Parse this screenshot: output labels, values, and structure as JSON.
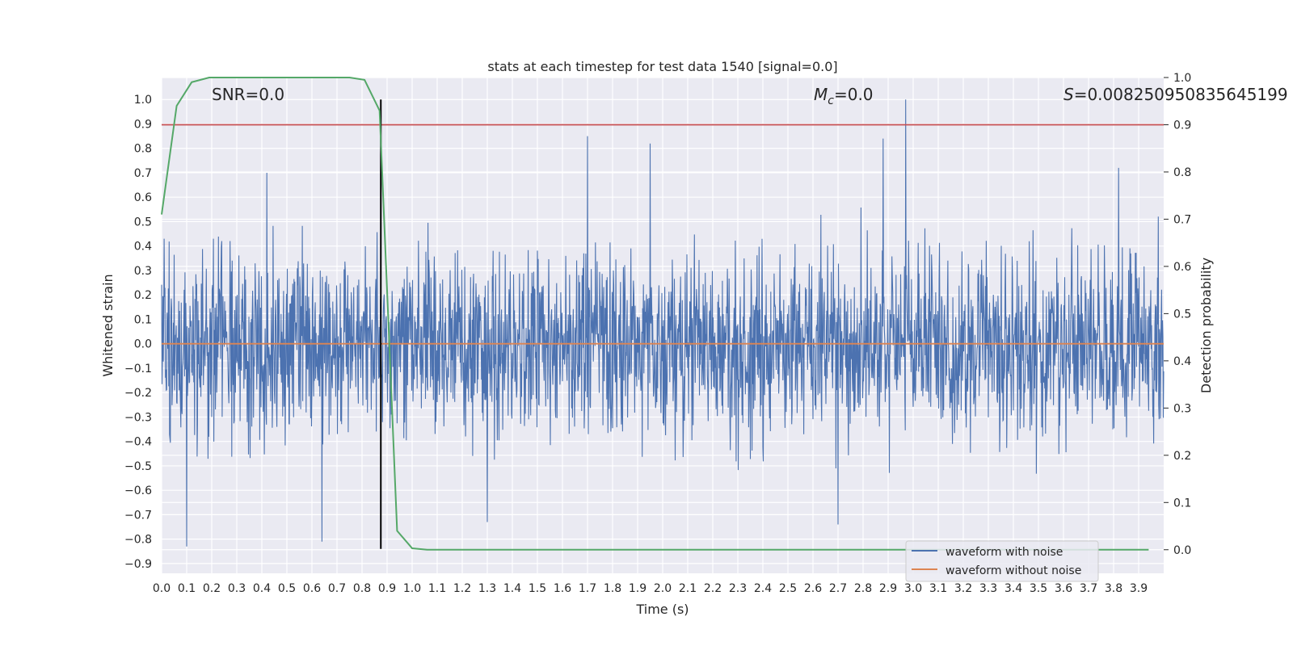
{
  "chart_data": {
    "type": "line",
    "title": "stats at each timestep for test data 1540 [signal=0.0]",
    "xlabel": "Time (s)",
    "ylabel": "Whitened strain",
    "y2label": "Detection probability",
    "xlim": [
      0.0,
      4.0
    ],
    "ylim": [
      -0.94,
      1.09
    ],
    "y2lim": [
      -0.05,
      1.0
    ],
    "x_ticks": [
      "0.0",
      "0.1",
      "0.2",
      "0.3",
      "0.4",
      "0.5",
      "0.6",
      "0.7",
      "0.8",
      "0.9",
      "1.0",
      "1.1",
      "1.2",
      "1.3",
      "1.4",
      "1.5",
      "1.6",
      "1.7",
      "1.8",
      "1.9",
      "2.0",
      "2.1",
      "2.2",
      "2.3",
      "2.4",
      "2.5",
      "2.6",
      "2.7",
      "2.8",
      "2.9",
      "3.0",
      "3.1",
      "3.2",
      "3.3",
      "3.4",
      "3.5",
      "3.6",
      "3.7",
      "3.8",
      "3.9"
    ],
    "y_ticks": [
      "1.0",
      "0.9",
      "0.8",
      "0.7",
      "0.6",
      "0.5",
      "0.4",
      "0.3",
      "0.2",
      "0.1",
      "0.0",
      "-0.1",
      "-0.2",
      "-0.3",
      "-0.4",
      "-0.5",
      "-0.6",
      "-0.7",
      "-0.8",
      "-0.9"
    ],
    "y2_ticks": [
      "1.0",
      "0.9",
      "0.8",
      "0.7",
      "0.6",
      "0.5",
      "0.4",
      "0.3",
      "0.2",
      "0.1",
      "0.0"
    ],
    "annotations": {
      "snr": "SNR=0.0",
      "mc_symbol": "M",
      "mc_sub": "c",
      "mc_value": "=0.0",
      "s_symbol": "S",
      "s_value": "=0.008250950835645199"
    },
    "series": [
      {
        "name": "waveform with noise",
        "color": "#4c72b0",
        "axis": "left",
        "kind": "noise",
        "typical_amplitude": 0.35,
        "spikes": [
          {
            "x": 1.7,
            "y": 0.85
          },
          {
            "x": 1.95,
            "y": 0.82
          },
          {
            "x": 2.88,
            "y": 0.84
          },
          {
            "x": 2.97,
            "y": 1.0
          },
          {
            "x": 0.1,
            "y": -0.83
          },
          {
            "x": 0.64,
            "y": -0.81
          },
          {
            "x": 0.42,
            "y": 0.7
          },
          {
            "x": 3.82,
            "y": 0.72
          },
          {
            "x": 2.7,
            "y": -0.74
          },
          {
            "x": 1.3,
            "y": -0.73
          }
        ]
      },
      {
        "name": "waveform without noise",
        "color": "#dd8452",
        "axis": "left",
        "x": [
          0.0,
          4.0
        ],
        "y": [
          0.0,
          0.0
        ]
      },
      {
        "name": "detection probability",
        "color": "#55a868",
        "axis": "right",
        "x": [
          0.0,
          0.06,
          0.12,
          0.19,
          0.25,
          0.31,
          0.37,
          0.44,
          0.5,
          0.56,
          0.62,
          0.69,
          0.75,
          0.81,
          0.87,
          0.94,
          1.0,
          1.06,
          1.12,
          1.5,
          2.0,
          2.5,
          3.0,
          3.5,
          3.94
        ],
        "y": [
          0.71,
          0.94,
          0.99,
          1.0,
          1.0,
          1.0,
          1.0,
          1.0,
          1.0,
          1.0,
          1.0,
          1.0,
          1.0,
          0.995,
          0.93,
          0.04,
          0.003,
          0.0,
          0.0,
          0.0,
          0.0,
          0.0,
          0.0,
          0.0,
          0.0
        ]
      }
    ],
    "threshold": {
      "axis": "right",
      "y": 0.9,
      "color": "#c44e52"
    },
    "marker_vline": {
      "x": 0.875,
      "color": "#000000",
      "y_from": -0.84,
      "y_to": 1.0
    },
    "legend": {
      "position": "lower-right",
      "entries": [
        {
          "label": "waveform with noise",
          "color": "#4c72b0"
        },
        {
          "label": "waveform without noise",
          "color": "#dd8452"
        }
      ]
    },
    "grid": true,
    "colors": {
      "background": "#eaeaf2",
      "grid": "#ffffff"
    }
  }
}
